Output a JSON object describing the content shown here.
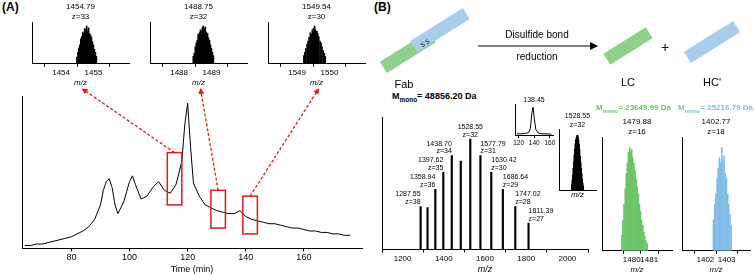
{
  "panel_labels": [
    "(A)",
    "(B)"
  ],
  "diagram": {
    "fab": "Fab",
    "bond": "S S",
    "arrow_top": "Disulfide bond",
    "arrow_bottom": "reduction",
    "plus": "+",
    "products": [
      {
        "label": "LC",
        "color": "#8fd18c"
      },
      {
        "label": "HC'",
        "color": "#a8cdec"
      }
    ]
  },
  "chart_data": [
    {
      "type": "line",
      "x_label": "Time (min)",
      "x": [
        64,
        66,
        68,
        70,
        72,
        74,
        76,
        78,
        80,
        82,
        84,
        86,
        88,
        90,
        91,
        92,
        93,
        94,
        95,
        96,
        98,
        100,
        101,
        102,
        104,
        106,
        108,
        110,
        112,
        114,
        116,
        118,
        119,
        120,
        121,
        122,
        124,
        126,
        128,
        130,
        132,
        134,
        136,
        138,
        140,
        142,
        144,
        146,
        148,
        150,
        152,
        154,
        156,
        158,
        160,
        162,
        164,
        166,
        168,
        170,
        172,
        174,
        176
      ],
      "values": [
        0.02,
        0.02,
        0.03,
        0.03,
        0.04,
        0.05,
        0.06,
        0.07,
        0.08,
        0.1,
        0.12,
        0.15,
        0.2,
        0.3,
        0.4,
        0.46,
        0.48,
        0.42,
        0.3,
        0.24,
        0.32,
        0.46,
        0.5,
        0.44,
        0.34,
        0.36,
        0.42,
        0.46,
        0.4,
        0.38,
        0.44,
        0.6,
        0.85,
        1.0,
        0.7,
        0.45,
        0.36,
        0.3,
        0.28,
        0.26,
        0.25,
        0.24,
        0.24,
        0.26,
        0.22,
        0.2,
        0.19,
        0.18,
        0.17,
        0.17,
        0.16,
        0.15,
        0.14,
        0.14,
        0.13,
        0.12,
        0.12,
        0.11,
        0.11,
        0.1,
        0.1,
        0.09,
        0.09
      ],
      "color": "#000000",
      "xlim": [
        63,
        180
      ],
      "xticks": [
        80,
        100,
        120,
        140,
        160
      ],
      "ylim": [
        0,
        1.05
      ],
      "grid": false,
      "tick_labels": "x",
      "highlight_boxes": [
        {
          "x": [
            113,
            118
          ],
          "y": [
            0.3,
            0.66
          ]
        },
        {
          "x": [
            128,
            133
          ],
          "y": [
            0.14,
            0.4
          ]
        },
        {
          "x": [
            139,
            144
          ],
          "y": [
            0.1,
            0.36
          ]
        }
      ]
    },
    {
      "type": "bar",
      "title": "1454.79",
      "subtitle": "z=33",
      "x_label": "m/z",
      "x": [
        1454.49,
        1454.52,
        1454.55,
        1454.58,
        1454.61,
        1454.64,
        1454.67,
        1454.7,
        1454.73,
        1454.76,
        1454.79,
        1454.82,
        1454.85,
        1454.88,
        1454.91,
        1454.94,
        1454.97,
        1455.0,
        1455.03,
        1455.06,
        1455.09
      ],
      "values": [
        0.18,
        0.3,
        0.42,
        0.5,
        0.66,
        0.72,
        0.84,
        0.8,
        0.93,
        0.9,
        1.0,
        0.88,
        0.95,
        0.8,
        0.76,
        0.7,
        0.58,
        0.5,
        0.38,
        0.3,
        0.2
      ],
      "color": "#000000",
      "xlim": [
        1453.85,
        1455.35
      ],
      "xticks": [
        1454,
        1455
      ],
      "ylim": [
        0,
        1.1
      ],
      "grid": false,
      "tick_labels": "x"
    },
    {
      "type": "bar",
      "title": "1488.75",
      "subtitle": "z=32",
      "x_label": "m/z",
      "x": [
        1488.44,
        1488.47,
        1488.5,
        1488.53,
        1488.56,
        1488.59,
        1488.63,
        1488.66,
        1488.69,
        1488.72,
        1488.75,
        1488.78,
        1488.81,
        1488.84,
        1488.88,
        1488.91,
        1488.94,
        1488.97,
        1489.0,
        1489.03,
        1489.06
      ],
      "values": [
        0.2,
        0.28,
        0.45,
        0.55,
        0.62,
        0.78,
        0.82,
        0.9,
        0.86,
        0.96,
        1.0,
        0.92,
        0.97,
        0.84,
        0.8,
        0.68,
        0.62,
        0.5,
        0.4,
        0.3,
        0.22
      ],
      "color": "#000000",
      "xlim": [
        1487.85,
        1489.35
      ],
      "xticks": [
        1488,
        1489
      ],
      "ylim": [
        0,
        1.1
      ],
      "grid": false,
      "tick_labels": "x"
    },
    {
      "type": "bar",
      "title": "1549.54",
      "subtitle": "z=30",
      "x_label": "m/z",
      "x": [
        1549.21,
        1549.24,
        1549.27,
        1549.31,
        1549.34,
        1549.37,
        1549.41,
        1549.44,
        1549.47,
        1549.51,
        1549.54,
        1549.57,
        1549.61,
        1549.64,
        1549.67,
        1549.71,
        1549.74,
        1549.77,
        1549.81,
        1549.84,
        1549.87
      ],
      "values": [
        0.22,
        0.3,
        0.4,
        0.52,
        0.6,
        0.7,
        0.82,
        0.78,
        0.9,
        0.94,
        1.0,
        0.9,
        0.86,
        0.8,
        0.72,
        0.6,
        0.55,
        0.45,
        0.35,
        0.28,
        0.2
      ],
      "color": "#000000",
      "xlim": [
        1548.85,
        1550.35
      ],
      "xticks": [
        1549,
        1550
      ],
      "ylim": [
        0,
        1.1
      ],
      "grid": false,
      "tick_labels": "x"
    },
    {
      "type": "bar",
      "mass_label": {
        "symbol": "M",
        "subscript": "mono",
        "text": "= 48856.20 Da"
      },
      "x_label": "m/z",
      "x": [
        1287.55,
        1321.0,
        1358.94,
        1397.62,
        1438.7,
        1482.4,
        1528.55,
        1577.79,
        1630.42,
        1686.64,
        1747.02,
        1811.39
      ],
      "values": [
        0.39,
        0.38,
        0.545,
        0.7,
        0.85,
        0.8,
        1.0,
        0.85,
        0.7,
        0.545,
        0.39,
        0.24
      ],
      "peak_labels": [
        [
          "1287.55",
          "z=38"
        ],
        null,
        [
          "1358.94",
          "z=36"
        ],
        [
          "1397.62",
          "z=35"
        ],
        [
          "1438.70",
          "z=34"
        ],
        null,
        [
          "1528.55",
          "z=32"
        ],
        [
          "1577.79",
          "z=31"
        ],
        [
          "1630.42",
          "z=30"
        ],
        [
          "1686.64",
          "z=29"
        ],
        [
          "1747.02",
          "z=28"
        ],
        [
          "1811.39",
          "z=27"
        ]
      ],
      "color": "#000000",
      "xlim": [
        1200,
        2000
      ],
      "xticks": [
        1200,
        1400,
        1600,
        1800,
        2000
      ],
      "ylim": [
        0,
        1.2
      ],
      "grid": false,
      "tick_labels": "x"
    },
    {
      "type": "line",
      "title": "138.45",
      "x": [
        118,
        122,
        126,
        130,
        133,
        135,
        137,
        138.45,
        140,
        142,
        145,
        150,
        155,
        160,
        162
      ],
      "values": [
        0.05,
        0.05,
        0.06,
        0.07,
        0.1,
        0.25,
        0.8,
        1.0,
        0.6,
        0.2,
        0.08,
        0.05,
        0.05,
        0.04,
        0.04
      ],
      "color": "#000000",
      "xlim": [
        116,
        164
      ],
      "xticks": [
        120,
        140,
        160
      ],
      "ylim": [
        0,
        1.1
      ],
      "grid": false,
      "tick_labels": "x"
    },
    {
      "type": "bar",
      "title": "1528.55",
      "subtitle": "z=32",
      "x_label": "m/z",
      "x": [
        1528.21,
        1528.24,
        1528.27,
        1528.3,
        1528.33,
        1528.36,
        1528.39,
        1528.42,
        1528.45,
        1528.49,
        1528.52,
        1528.55,
        1528.58,
        1528.61,
        1528.64,
        1528.67,
        1528.71,
        1528.74,
        1528.77,
        1528.8,
        1528.83,
        1528.86,
        1528.89
      ],
      "values": [
        0.1,
        0.18,
        0.28,
        0.4,
        0.52,
        0.64,
        0.75,
        0.85,
        0.92,
        0.96,
        0.99,
        1.0,
        0.97,
        0.92,
        0.84,
        0.74,
        0.62,
        0.5,
        0.4,
        0.3,
        0.2,
        0.13,
        0.08
      ],
      "color": "#000000",
      "xlim": [
        1528.0,
        1529.1
      ],
      "ylim": [
        0,
        1.1
      ],
      "grid": false,
      "tick_labels": false
    },
    {
      "type": "bar",
      "title": "1479.88",
      "subtitle": "z=16",
      "x_label": "m/z",
      "mass_label": {
        "symbol": "M",
        "subscript": "mono",
        "text": "= 23649.99 Da"
      },
      "x": [
        1479.44,
        1479.5,
        1479.56,
        1479.63,
        1479.69,
        1479.75,
        1479.81,
        1479.88,
        1479.94,
        1480.0,
        1480.06,
        1480.13,
        1480.19,
        1480.25,
        1480.31,
        1480.38,
        1480.44,
        1480.5,
        1480.56,
        1480.63,
        1480.69,
        1480.75,
        1480.81,
        1480.88
      ],
      "values": [
        0.15,
        0.3,
        0.45,
        0.6,
        0.75,
        0.85,
        0.95,
        1.0,
        0.96,
        0.98,
        0.9,
        0.85,
        0.78,
        0.7,
        0.62,
        0.55,
        0.45,
        0.38,
        0.3,
        0.25,
        0.18,
        0.14,
        0.1,
        0.07
      ],
      "color": "#6cc468",
      "xlim": [
        1479.3,
        1481.3
      ],
      "xticks": [
        1480,
        1481
      ],
      "ylim": [
        0,
        1.1
      ],
      "grid": false,
      "tick_labels": "x"
    },
    {
      "type": "bar",
      "title": "1402.77",
      "subtitle": "z=18",
      "x_label": "m/z",
      "mass_label": {
        "symbol": "M",
        "subscript": "mono",
        "text": "= 25216.79 Da"
      },
      "x": [
        1402.38,
        1402.44,
        1402.49,
        1402.55,
        1402.6,
        1402.66,
        1402.71,
        1402.77,
        1402.82,
        1402.88,
        1402.94,
        1402.99,
        1403.05,
        1403.1,
        1403.16,
        1403.21
      ],
      "values": [
        0.3,
        0.45,
        0.55,
        0.7,
        0.8,
        0.9,
        0.85,
        1.0,
        0.88,
        0.92,
        0.75,
        0.7,
        0.55,
        0.45,
        0.35,
        0.25
      ],
      "color": "#82bce6",
      "xlim": [
        1401.7,
        1403.3
      ],
      "xticks": [
        1402,
        1403
      ],
      "ylim": [
        0,
        1.1
      ],
      "grid": false,
      "tick_labels": "x"
    }
  ]
}
